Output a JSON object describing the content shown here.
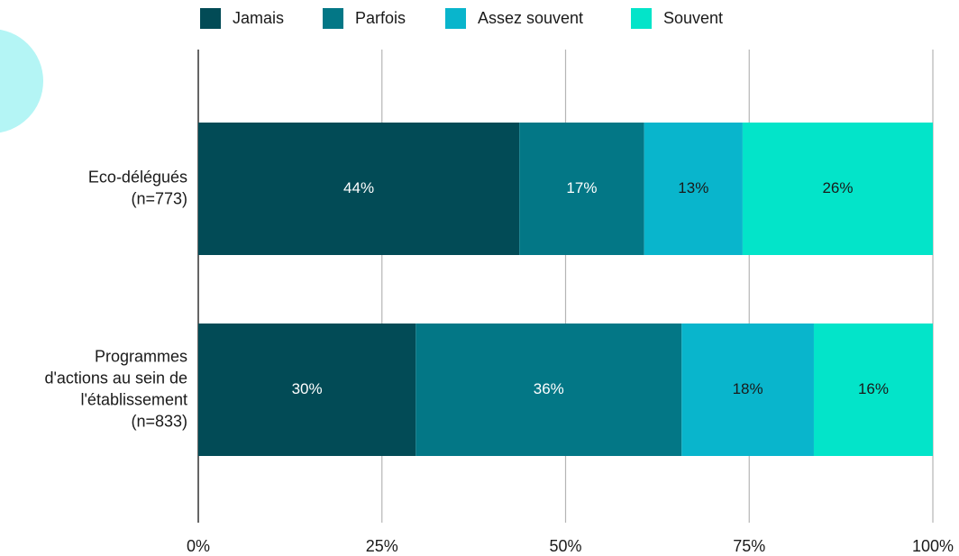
{
  "chart_data": {
    "type": "stacked_barh",
    "categories": [
      [
        "Eco-délégués",
        "(n=773)"
      ],
      [
        "Programmes",
        "d'actions au sein de",
        "l'établissement",
        "(n=833)"
      ]
    ],
    "series": [
      {
        "name": "Jamais",
        "color": "#024b56",
        "values": [
          43.7,
          29.6
        ],
        "value_labels": [
          "44%",
          "30%"
        ]
      },
      {
        "name": "Parfois",
        "color": "#037786",
        "values": [
          17.0,
          36.2
        ],
        "value_labels": [
          "17%",
          "36%"
        ]
      },
      {
        "name": "Assez souvent",
        "color": "#09b5cc",
        "values": [
          13.4,
          18.0
        ],
        "value_labels": [
          "13%",
          "18%"
        ]
      },
      {
        "name": "Souvent",
        "color": "#03e4c9",
        "values": [
          25.9,
          16.2
        ],
        "value_labels": [
          "26%",
          "16%"
        ]
      }
    ],
    "xlim": [
      0,
      100
    ],
    "xticks": [
      {
        "value": 0,
        "label": "0%"
      },
      {
        "value": 25,
        "label": "25%"
      },
      {
        "value": 50,
        "label": "50%"
      },
      {
        "value": 75,
        "label": "75%"
      },
      {
        "value": 100,
        "label": "100%"
      }
    ],
    "grid": true,
    "legend": "top"
  }
}
